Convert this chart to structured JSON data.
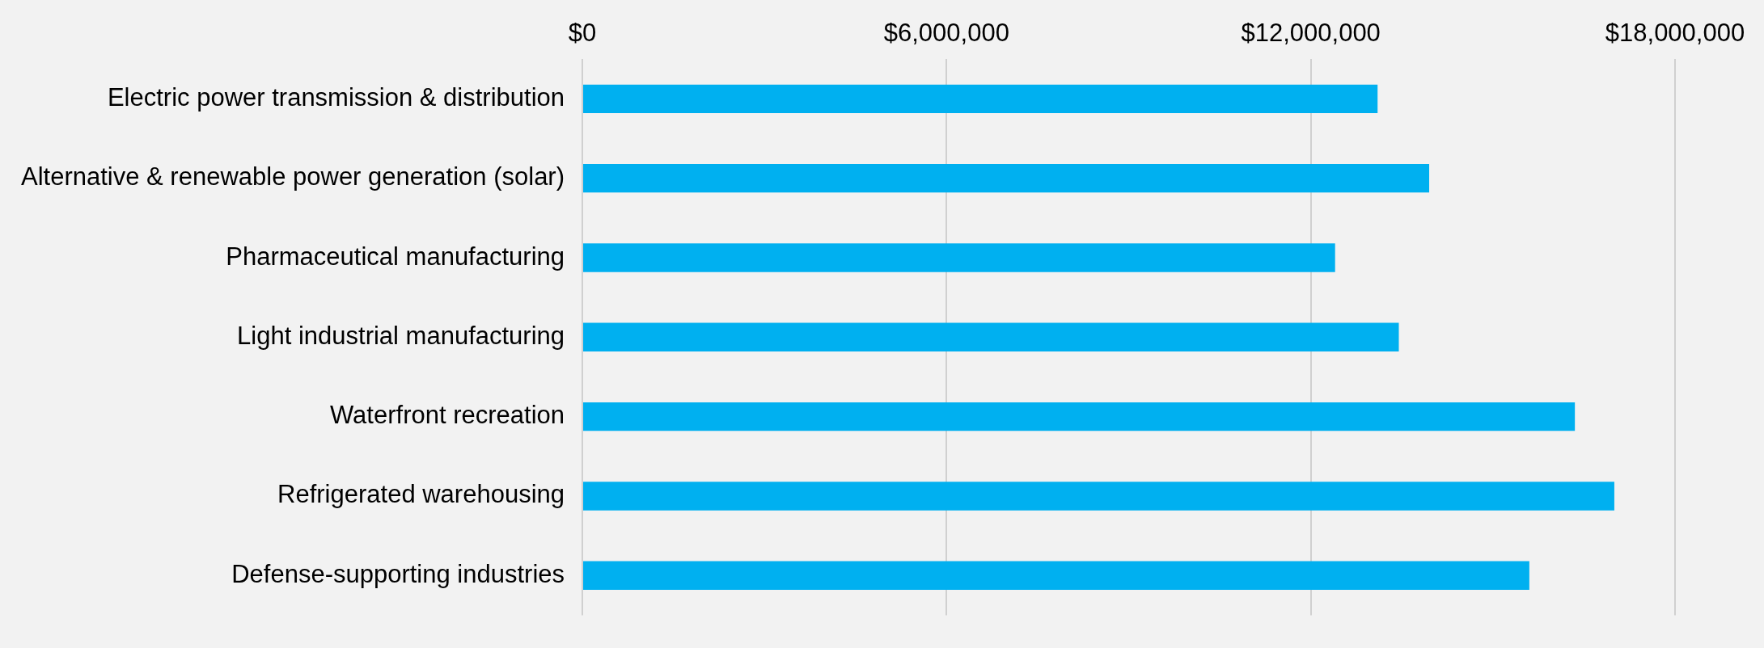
{
  "chart_data": {
    "type": "bar",
    "orientation": "horizontal",
    "categories": [
      "Electric power transmission & distribution",
      "Alternative & renewable power generation (solar)",
      "Pharmaceutical manufacturing",
      "Light industrial manufacturing",
      "Waterfront recreation",
      "Refrigerated warehousing",
      "Defense-supporting industries"
    ],
    "values": [
      13100000,
      13950000,
      12400000,
      13450000,
      16350000,
      17000000,
      15600000
    ],
    "color": "#00b0f0",
    "xlim": [
      0,
      18000000
    ],
    "xticks": [
      {
        "value": 0,
        "label": "$0"
      },
      {
        "value": 6000000,
        "label": "$6,000,000"
      },
      {
        "value": 12000000,
        "label": "$12,000,000"
      },
      {
        "value": 18000000,
        "label": "$18,000,000"
      }
    ],
    "grid": "x",
    "legend": false
  }
}
